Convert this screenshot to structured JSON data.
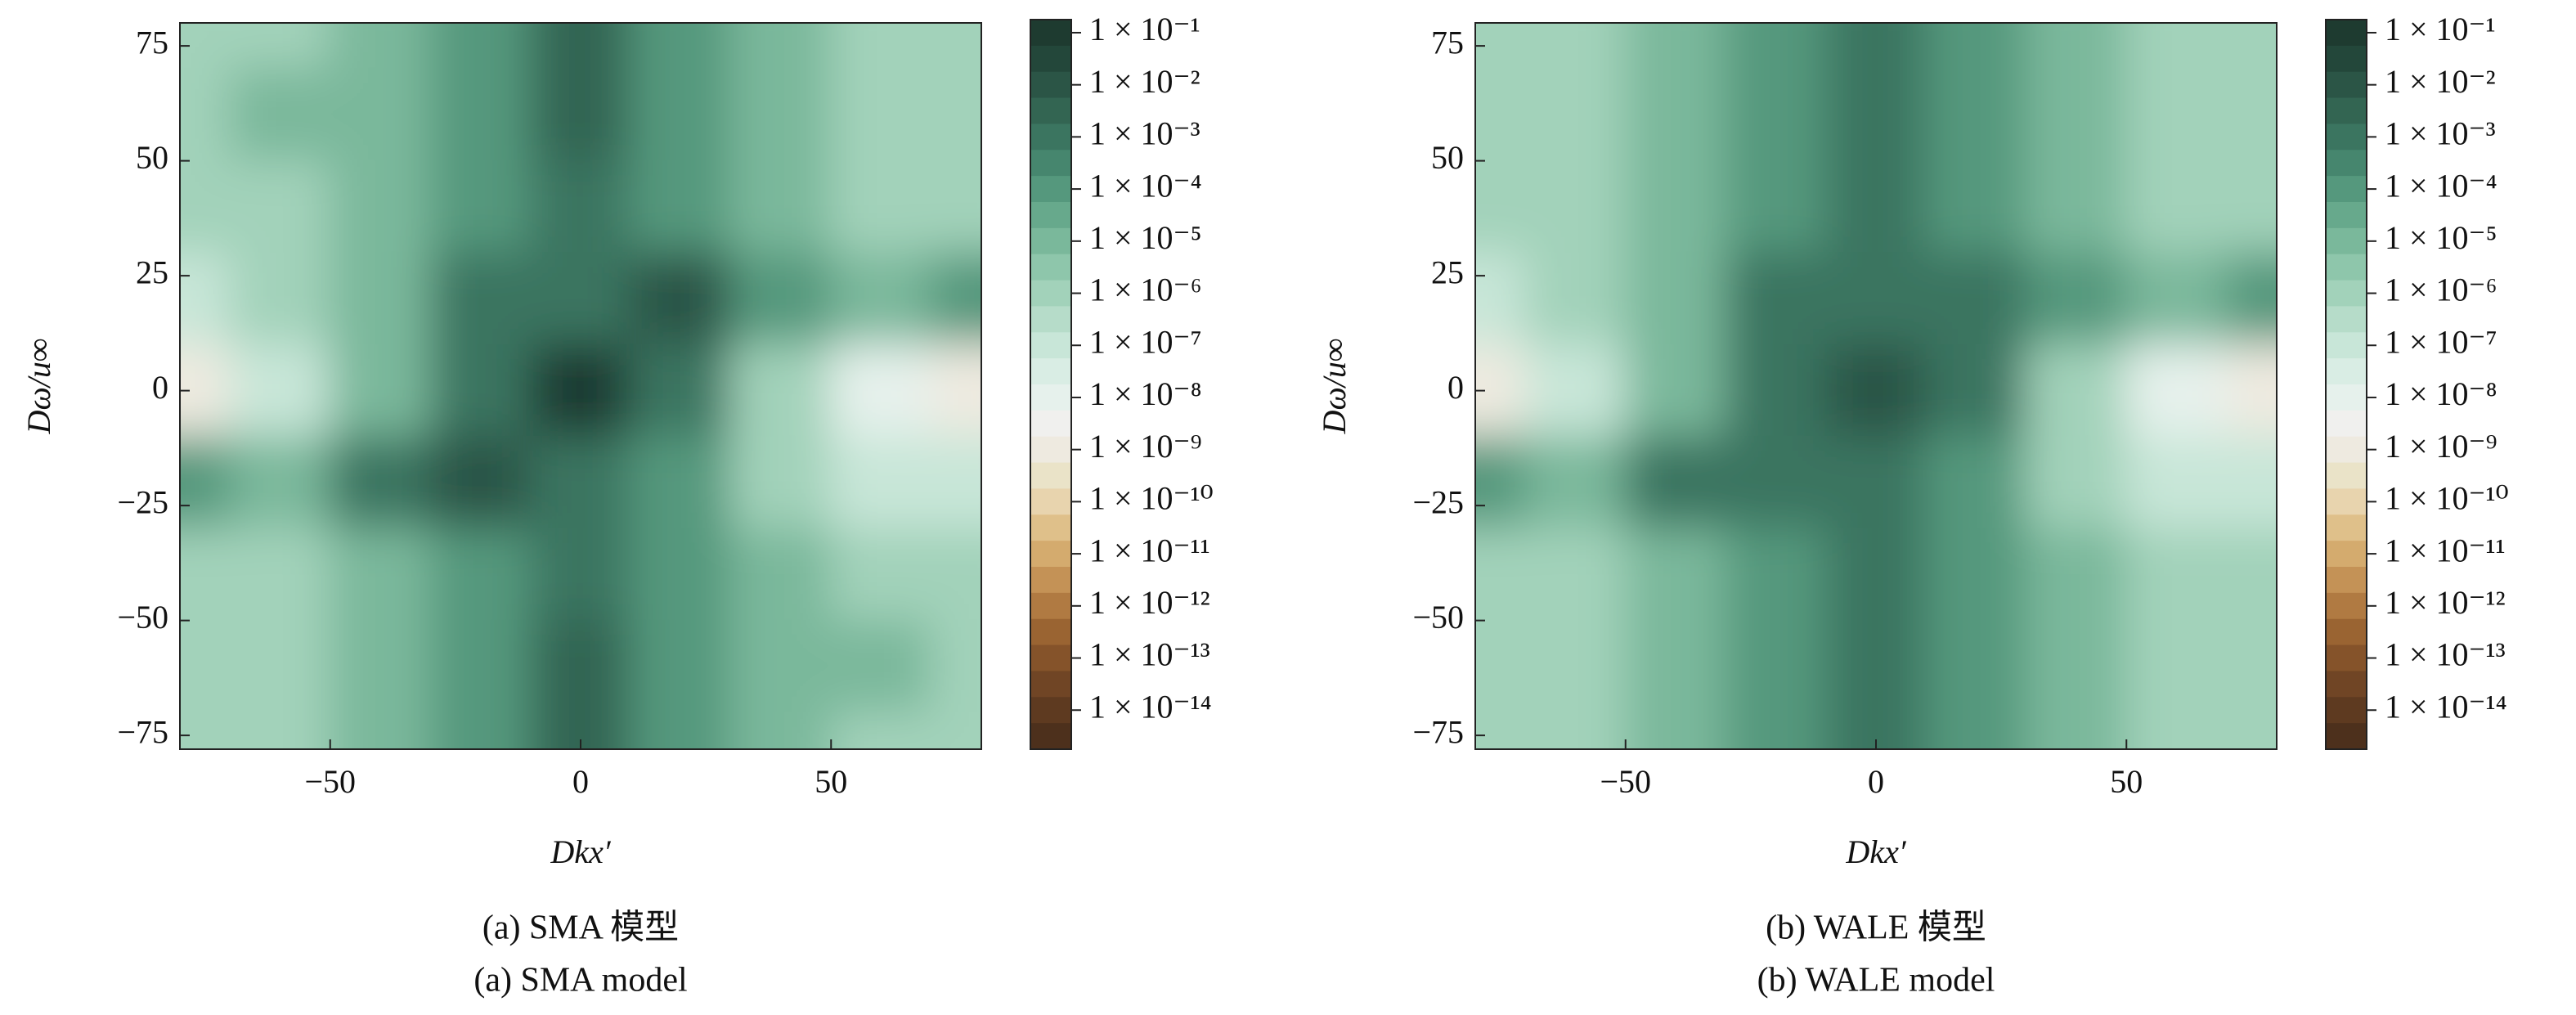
{
  "chart_data": [
    {
      "type": "heatmap",
      "caption": "(a) SMA 模型",
      "caption_en": "(a) SMA model",
      "xlabel": "Dkx′",
      "ylabel": "Dω/u∞",
      "xlim": [
        -80,
        80
      ],
      "ylim": [
        -78,
        80
      ],
      "xticks": [
        {
          "value": -50,
          "label": "−50"
        },
        0,
        50
      ],
      "yticks": [
        75,
        50,
        25,
        0,
        {
          "value": -25,
          "label": "−25"
        },
        {
          "value": -50,
          "label": "−50"
        },
        {
          "value": -75,
          "label": "−75"
        }
      ],
      "x": [
        -80,
        -60,
        -40,
        -20,
        0,
        20,
        40,
        60,
        80
      ],
      "y": [
        80,
        60,
        40,
        20,
        0,
        -20,
        -40,
        -60,
        -80
      ],
      "z": [
        [
          1e-06,
          1e-06,
          1e-05,
          0.0001,
          0.003,
          0.0001,
          1e-05,
          1e-06,
          1e-06
        ],
        [
          1e-06,
          1e-05,
          1e-05,
          0.0001,
          0.003,
          0.0001,
          1e-05,
          1e-06,
          1e-06
        ],
        [
          1e-06,
          1e-06,
          1e-05,
          0.0001,
          0.001,
          0.0001,
          1e-05,
          1e-06,
          1e-06
        ],
        [
          1e-07,
          1e-06,
          1e-05,
          0.001,
          0.001,
          0.01,
          0.0001,
          1e-05,
          0.0001
        ],
        [
          1e-09,
          1e-07,
          1e-05,
          0.001,
          0.1,
          0.001,
          1e-06,
          1e-08,
          1e-09
        ],
        [
          0.0001,
          1e-05,
          0.001,
          0.01,
          0.001,
          0.0001,
          1e-06,
          1e-07,
          1e-07
        ],
        [
          1e-06,
          1e-06,
          1e-05,
          0.0001,
          0.001,
          0.0001,
          1e-05,
          1e-06,
          1e-06
        ],
        [
          1e-06,
          1e-06,
          1e-05,
          0.0001,
          0.003,
          0.0001,
          1e-05,
          1e-05,
          1e-06
        ],
        [
          1e-06,
          1e-06,
          1e-05,
          0.0001,
          0.003,
          0.0001,
          1e-05,
          1e-06,
          1e-06
        ]
      ],
      "colorscale": "log",
      "clim": [
        0.178,
        1.78e-15
      ],
      "colors": [
        "#1e3b30",
        "#23473a",
        "#2b5546",
        "#336552",
        "#3b7560",
        "#46866e",
        "#55987d",
        "#67a98c",
        "#7ab89b",
        "#8ec6ab",
        "#a2d2ba",
        "#b6dcc9",
        "#c8e6d8",
        "#d9ede4",
        "#e6f1ec",
        "#f0f0ee",
        "#eeeae0",
        "#eae3c8",
        "#e8d4ae",
        "#dfc08a",
        "#d4ab6e",
        "#c49256",
        "#b07a42",
        "#9a6432",
        "#85532a",
        "#704525",
        "#5e3a20",
        "#4d301c"
      ],
      "cticks": [
        {
          "value": 0.1,
          "label": "1 × 10⁻¹"
        },
        {
          "value": 0.01,
          "label": "1 × 10⁻²"
        },
        {
          "value": 0.001,
          "label": "1 × 10⁻³"
        },
        {
          "value": 0.0001,
          "label": "1 × 10⁻⁴"
        },
        {
          "value": 1e-05,
          "label": "1 × 10⁻⁵"
        },
        {
          "value": 1e-06,
          "label": "1 × 10⁻⁶"
        },
        {
          "value": 1e-07,
          "label": "1 × 10⁻⁷"
        },
        {
          "value": 1e-08,
          "label": "1 × 10⁻⁸"
        },
        {
          "value": 1e-09,
          "label": "1 × 10⁻⁹"
        },
        {
          "value": 1e-10,
          "label": "1 × 10⁻¹⁰"
        },
        {
          "value": 1e-11,
          "label": "1 × 10⁻¹¹"
        },
        {
          "value": 1e-12,
          "label": "1 × 10⁻¹²"
        },
        {
          "value": 1e-13,
          "label": "1 × 10⁻¹³"
        },
        {
          "value": 1e-14,
          "label": "1 × 10⁻¹⁴"
        }
      ]
    },
    {
      "type": "heatmap",
      "caption": "(b) WALE 模型",
      "caption_en": "(b) WALE model",
      "xlabel": "Dkx′",
      "ylabel": "Dω/u∞",
      "xlim": [
        -80,
        80
      ],
      "ylim": [
        -78,
        80
      ],
      "xticks": [
        {
          "value": -50,
          "label": "−50"
        },
        0,
        50
      ],
      "yticks": [
        75,
        50,
        25,
        0,
        {
          "value": -25,
          "label": "−25"
        },
        {
          "value": -50,
          "label": "−50"
        },
        {
          "value": -75,
          "label": "−75"
        }
      ],
      "x": [
        -80,
        -60,
        -40,
        -20,
        0,
        20,
        40,
        60,
        80
      ],
      "y": [
        80,
        60,
        40,
        20,
        0,
        -20,
        -40,
        -60,
        -80
      ],
      "z": [
        [
          1e-06,
          1e-06,
          1e-05,
          0.0001,
          0.001,
          0.0001,
          1e-05,
          1e-06,
          1e-06
        ],
        [
          1e-06,
          1e-06,
          1e-05,
          0.0001,
          0.001,
          0.0001,
          1e-05,
          1e-06,
          1e-06
        ],
        [
          1e-06,
          1e-06,
          1e-05,
          0.0001,
          0.001,
          0.0001,
          1e-05,
          1e-06,
          1e-06
        ],
        [
          1e-07,
          1e-06,
          1e-05,
          0.001,
          0.001,
          0.001,
          0.0001,
          1e-05,
          0.0001
        ],
        [
          1e-09,
          1e-07,
          1e-05,
          0.001,
          0.01,
          0.001,
          1e-06,
          1e-08,
          1e-09
        ],
        [
          0.0001,
          1e-05,
          0.001,
          0.001,
          0.001,
          0.0001,
          1e-06,
          1e-07,
          1e-07
        ],
        [
          1e-06,
          1e-06,
          1e-05,
          0.0001,
          0.001,
          0.0001,
          1e-05,
          1e-06,
          1e-06
        ],
        [
          1e-06,
          1e-06,
          1e-05,
          0.0001,
          0.001,
          0.0001,
          1e-05,
          1e-06,
          1e-06
        ],
        [
          1e-06,
          1e-06,
          1e-05,
          0.0001,
          0.001,
          0.0001,
          1e-05,
          1e-06,
          1e-06
        ]
      ],
      "colorscale": "log",
      "clim": [
        0.178,
        1.78e-15
      ],
      "colors": [
        "#1e3b30",
        "#23473a",
        "#2b5546",
        "#336552",
        "#3b7560",
        "#46866e",
        "#55987d",
        "#67a98c",
        "#7ab89b",
        "#8ec6ab",
        "#a2d2ba",
        "#b6dcc9",
        "#c8e6d8",
        "#d9ede4",
        "#e6f1ec",
        "#f0f0ee",
        "#eeeae0",
        "#eae3c8",
        "#e8d4ae",
        "#dfc08a",
        "#d4ab6e",
        "#c49256",
        "#b07a42",
        "#9a6432",
        "#85532a",
        "#704525",
        "#5e3a20",
        "#4d301c"
      ],
      "cticks": [
        {
          "value": 0.1,
          "label": "1 × 10⁻¹"
        },
        {
          "value": 0.01,
          "label": "1 × 10⁻²"
        },
        {
          "value": 0.001,
          "label": "1 × 10⁻³"
        },
        {
          "value": 0.0001,
          "label": "1 × 10⁻⁴"
        },
        {
          "value": 1e-05,
          "label": "1 × 10⁻⁵"
        },
        {
          "value": 1e-06,
          "label": "1 × 10⁻⁶"
        },
        {
          "value": 1e-07,
          "label": "1 × 10⁻⁷"
        },
        {
          "value": 1e-08,
          "label": "1 × 10⁻⁸"
        },
        {
          "value": 1e-09,
          "label": "1 × 10⁻⁹"
        },
        {
          "value": 1e-10,
          "label": "1 × 10⁻¹⁰"
        },
        {
          "value": 1e-11,
          "label": "1 × 10⁻¹¹"
        },
        {
          "value": 1e-12,
          "label": "1 × 10⁻¹²"
        },
        {
          "value": 1e-13,
          "label": "1 × 10⁻¹³"
        },
        {
          "value": 1e-14,
          "label": "1 × 10⁻¹⁴"
        }
      ]
    }
  ]
}
